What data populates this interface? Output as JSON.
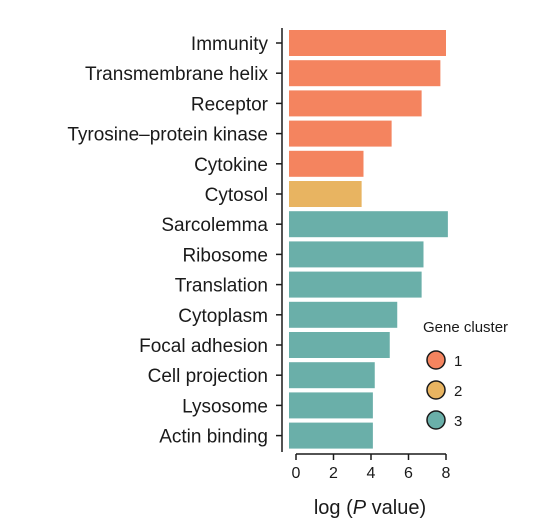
{
  "chart_data": {
    "type": "bar",
    "orientation": "horizontal",
    "categories": [
      "Immunity",
      "Transmembrane helix",
      "Receptor",
      "Tyrosine–protein kinase",
      "Cytokine",
      "Cytosol",
      "Sarcolemma",
      "Ribosome",
      "Translation",
      "Cytoplasm",
      "Focal adhesion",
      "Cell projection",
      "Lysosome",
      "Actin binding"
    ],
    "values": [
      8.0,
      7.7,
      6.7,
      5.1,
      3.6,
      3.5,
      8.1,
      6.8,
      6.7,
      5.4,
      5.0,
      4.2,
      4.1,
      4.1
    ],
    "cluster": [
      "1",
      "1",
      "1",
      "1",
      "1",
      "2",
      "3",
      "3",
      "3",
      "3",
      "3",
      "3",
      "3",
      "3"
    ],
    "xlabel_prefix": "log (",
    "xlabel_italic": "P",
    "xlabel_suffix": " value)",
    "xlim": [
      -0.5,
      8.4
    ],
    "xticks": [
      0,
      2,
      4,
      6,
      8
    ],
    "legend": {
      "title": "Gene cluster",
      "placement": "right",
      "items": [
        {
          "label": "1",
          "color": "#f4845f"
        },
        {
          "label": "2",
          "color": "#e8b461"
        },
        {
          "label": "3",
          "color": "#6aafa9"
        }
      ]
    },
    "grid": false
  }
}
